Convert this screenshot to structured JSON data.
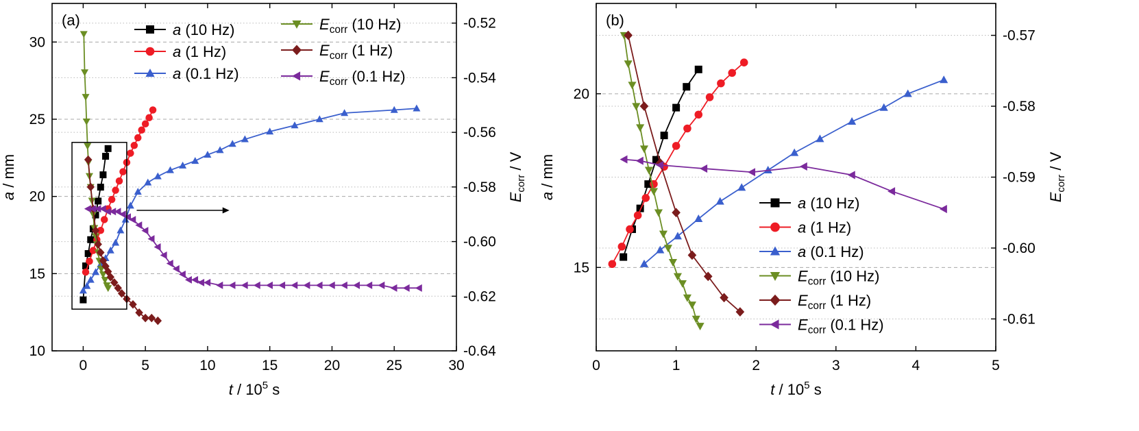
{
  "chart_data": [
    {
      "type": "line",
      "panel_label": "(a)",
      "xlabel": {
        "main": "t",
        "sep": " / 10",
        "sup": "5",
        "unit": " s"
      },
      "ylabel": {
        "main": "a",
        "unit": " / mm"
      },
      "y2label": {
        "main": "E",
        "sub": "corr",
        "unit": " / V"
      },
      "xlim": [
        -2.5,
        30
      ],
      "ylim": [
        10,
        32.5
      ],
      "y2lim": [
        -0.64,
        -0.5128
      ],
      "xticks": [
        "0",
        "5",
        "10",
        "15",
        "20",
        "25",
        "30"
      ],
      "yticks": [
        "10",
        "15",
        "20",
        "25",
        "30"
      ],
      "y2ticks": [
        "-0.64",
        "-0.62",
        "-0.60",
        "-0.58",
        "-0.56",
        "-0.54",
        "-0.52"
      ],
      "legend": "top, two columns",
      "annotations": [
        "inset box around 0–3.5 ×10^5 s",
        "arrow pointing to right axis"
      ],
      "series": [
        {
          "name": "a (10 Hz)",
          "main": "a",
          "sub": "",
          "rest": " (10 Hz)",
          "axis": "left",
          "color": "#000000",
          "marker": "square",
          "x": [
            0.0,
            0.2,
            0.4,
            0.6,
            0.8,
            1.0,
            1.2,
            1.4,
            1.6,
            1.8,
            2.0
          ],
          "y": [
            13.3,
            15.5,
            16.3,
            17.2,
            17.9,
            18.8,
            19.7,
            20.6,
            21.4,
            22.6,
            23.1
          ]
        },
        {
          "name": "a (1 Hz)",
          "main": "a",
          "sub": "",
          "rest": " (1 Hz)",
          "axis": "left",
          "color": "#ee1c25",
          "marker": "circle",
          "x": [
            0.2,
            0.5,
            0.8,
            1.1,
            1.4,
            1.7,
            2.0,
            2.3,
            2.6,
            2.9,
            3.2,
            3.5,
            3.8,
            4.1,
            4.4,
            4.7,
            5.0,
            5.3,
            5.6
          ],
          "y": [
            15.1,
            15.8,
            16.5,
            17.2,
            17.8,
            18.5,
            19.2,
            19.8,
            20.4,
            21.0,
            21.6,
            22.2,
            22.8,
            23.3,
            23.8,
            24.3,
            24.7,
            25.1,
            25.6
          ]
        },
        {
          "name": "a (0.1 Hz)",
          "main": "a",
          "sub": "",
          "rest": " (0.1 Hz)",
          "axis": "left",
          "color": "#3a5fcd",
          "marker": "triangle-up",
          "x": [
            0.0,
            0.3,
            0.6,
            1.0,
            1.4,
            1.8,
            2.2,
            2.6,
            3.0,
            3.4,
            3.8,
            4.4,
            5.2,
            6.0,
            7.0,
            8.0,
            9.0,
            10.0,
            11.0,
            12.0,
            13.0,
            15.0,
            17.0,
            19.0,
            21.0,
            25.0,
            26.8
          ],
          "y": [
            13.9,
            14.2,
            14.6,
            15.1,
            15.6,
            16.0,
            16.5,
            17.0,
            17.8,
            18.5,
            19.4,
            20.3,
            20.9,
            21.3,
            21.7,
            22.0,
            22.3,
            22.7,
            23.0,
            23.4,
            23.7,
            24.2,
            24.6,
            25.0,
            25.4,
            25.6,
            25.7
          ]
        },
        {
          "name": "Ecorr (10 Hz)",
          "main": "E",
          "sub": "corr",
          "rest": " (10 Hz)",
          "axis": "right",
          "color": "#6b8e23",
          "marker": "triangle-down",
          "x": [
            0.05,
            0.12,
            0.2,
            0.27,
            0.35,
            0.42,
            0.5,
            0.6,
            0.7,
            0.8,
            0.9,
            1.0,
            1.1,
            1.2,
            1.3,
            1.45,
            1.6,
            1.75,
            1.9,
            2.0
          ],
          "y": [
            -0.524,
            -0.538,
            -0.547,
            -0.556,
            -0.565,
            -0.571,
            -0.576,
            -0.58,
            -0.585,
            -0.59,
            -0.595,
            -0.598,
            -0.601,
            -0.604,
            -0.607,
            -0.61,
            -0.612,
            -0.614,
            -0.616,
            -0.617
          ]
        },
        {
          "name": "Ecorr (1 Hz)",
          "main": "E",
          "sub": "corr",
          "rest": " (1 Hz)",
          "axis": "right",
          "color": "#7b1c1c",
          "marker": "diamond",
          "x": [
            0.4,
            0.6,
            0.8,
            1.0,
            1.2,
            1.4,
            1.6,
            1.8,
            2.0,
            2.2,
            2.5,
            2.8,
            3.1,
            3.5,
            4.0,
            4.5,
            5.0,
            5.5,
            6.0
          ],
          "y": [
            -0.57,
            -0.58,
            -0.588,
            -0.596,
            -0.601,
            -0.604,
            -0.607,
            -0.609,
            -0.611,
            -0.613,
            -0.615,
            -0.617,
            -0.619,
            -0.621,
            -0.623,
            -0.626,
            -0.628,
            -0.628,
            -0.629
          ]
        },
        {
          "name": "Ecorr (0.1 Hz)",
          "main": "E",
          "sub": "corr",
          "rest": " (0.1 Hz)",
          "axis": "right",
          "color": "#7b2a9c",
          "marker": "triangle-left",
          "x": [
            0.4,
            0.8,
            1.2,
            1.6,
            2.0,
            2.4,
            2.8,
            3.2,
            3.6,
            4.0,
            4.5,
            5.0,
            5.5,
            6.0,
            6.5,
            7.0,
            7.5,
            8.0,
            8.5,
            9.0,
            9.5,
            10.0,
            11.0,
            12.0,
            13.0,
            14.0,
            15.0,
            16.0,
            17.0,
            18.0,
            19.0,
            20.0,
            21.0,
            22.0,
            23.0,
            24.0,
            25.0,
            26.0,
            27.0
          ],
          "y": [
            -0.588,
            -0.588,
            -0.588,
            -0.588,
            -0.589,
            -0.589,
            -0.589,
            -0.59,
            -0.591,
            -0.592,
            -0.594,
            -0.596,
            -0.599,
            -0.602,
            -0.605,
            -0.608,
            -0.61,
            -0.612,
            -0.614,
            -0.614,
            -0.615,
            -0.615,
            -0.616,
            -0.616,
            -0.616,
            -0.616,
            -0.616,
            -0.616,
            -0.616,
            -0.616,
            -0.616,
            -0.616,
            -0.616,
            -0.616,
            -0.616,
            -0.616,
            -0.617,
            -0.617,
            -0.617
          ]
        }
      ]
    },
    {
      "type": "line",
      "panel_label": "(b)",
      "xlabel": {
        "main": "t",
        "sep": " / 10",
        "sup": "5",
        "unit": " s"
      },
      "ylabel": {
        "main": "a",
        "unit": " / mm"
      },
      "y2label": {
        "main": "E",
        "sub": "corr",
        "unit": " / V"
      },
      "xlim": [
        0,
        5
      ],
      "ylim": [
        12.6,
        22.6
      ],
      "y2lim": [
        -0.6145,
        -0.5655
      ],
      "xticks": [
        "0",
        "1",
        "2",
        "3",
        "4",
        "5"
      ],
      "yticks": [
        "15",
        "20"
      ],
      "y2ticks": [
        "-0.61",
        "-0.60",
        "-0.59",
        "-0.58",
        "-0.57"
      ],
      "legend": "bottom-center, one column",
      "series": [
        {
          "name": "a (10 Hz)",
          "main": "a",
          "sub": "",
          "rest": " (10 Hz)",
          "axis": "left",
          "color": "#000000",
          "marker": "square",
          "x": [
            0.34,
            0.45,
            0.55,
            0.65,
            0.75,
            0.85,
            1.0,
            1.13,
            1.28
          ],
          "y": [
            15.3,
            16.1,
            16.7,
            17.4,
            18.1,
            18.8,
            19.6,
            20.2,
            20.7
          ]
        },
        {
          "name": "a (1 Hz)",
          "main": "a",
          "sub": "",
          "rest": " (1 Hz)",
          "axis": "left",
          "color": "#ee1c25",
          "marker": "circle",
          "x": [
            0.2,
            0.32,
            0.42,
            0.52,
            0.62,
            0.72,
            0.85,
            1.0,
            1.14,
            1.28,
            1.42,
            1.56,
            1.7,
            1.85
          ],
          "y": [
            15.1,
            15.6,
            16.1,
            16.5,
            17.0,
            17.4,
            17.9,
            18.5,
            19.0,
            19.4,
            19.9,
            20.3,
            20.6,
            20.9
          ]
        },
        {
          "name": "a (0.1 Hz)",
          "main": "a",
          "sub": "",
          "rest": " (0.1 Hz)",
          "axis": "left",
          "color": "#3a5fcd",
          "marker": "triangle-up",
          "x": [
            0.6,
            0.8,
            1.02,
            1.28,
            1.55,
            1.82,
            2.15,
            2.48,
            2.8,
            3.2,
            3.6,
            3.9,
            4.35
          ],
          "y": [
            15.1,
            15.5,
            15.9,
            16.4,
            16.9,
            17.3,
            17.8,
            18.3,
            18.7,
            19.2,
            19.6,
            20.0,
            20.4
          ]
        },
        {
          "name": "Ecorr (10 Hz)",
          "main": "E",
          "sub": "corr",
          "rest": " (10 Hz)",
          "axis": "right",
          "color": "#6b8e23",
          "marker": "triangle-down",
          "x": [
            0.35,
            0.4,
            0.45,
            0.5,
            0.55,
            0.6,
            0.66,
            0.72,
            0.78,
            0.84,
            0.9,
            0.96,
            1.02,
            1.08,
            1.14,
            1.2,
            1.25,
            1.3
          ],
          "y": [
            -0.57,
            -0.574,
            -0.577,
            -0.58,
            -0.583,
            -0.586,
            -0.589,
            -0.592,
            -0.595,
            -0.598,
            -0.6,
            -0.602,
            -0.604,
            -0.605,
            -0.607,
            -0.608,
            -0.61,
            -0.611
          ]
        },
        {
          "name": "Ecorr (1 Hz)",
          "main": "E",
          "sub": "corr",
          "rest": " (1 Hz)",
          "axis": "right",
          "color": "#7b1c1c",
          "marker": "diamond",
          "x": [
            0.4,
            0.6,
            0.8,
            1.0,
            1.2,
            1.4,
            1.6,
            1.8
          ],
          "y": [
            -0.57,
            -0.58,
            -0.588,
            -0.595,
            -0.601,
            -0.604,
            -0.607,
            -0.609
          ]
        },
        {
          "name": "Ecorr (0.1 Hz)",
          "main": "E",
          "sub": "corr",
          "rest": " (0.1 Hz)",
          "axis": "right",
          "color": "#7b2a9c",
          "marker": "triangle-left",
          "x": [
            0.35,
            0.55,
            0.8,
            1.35,
            1.95,
            2.6,
            3.2,
            3.7,
            4.35
          ],
          "y": [
            -0.5875,
            -0.5877,
            -0.5883,
            -0.5888,
            -0.5893,
            -0.5885,
            -0.5897,
            -0.592,
            -0.5945
          ]
        }
      ]
    }
  ]
}
